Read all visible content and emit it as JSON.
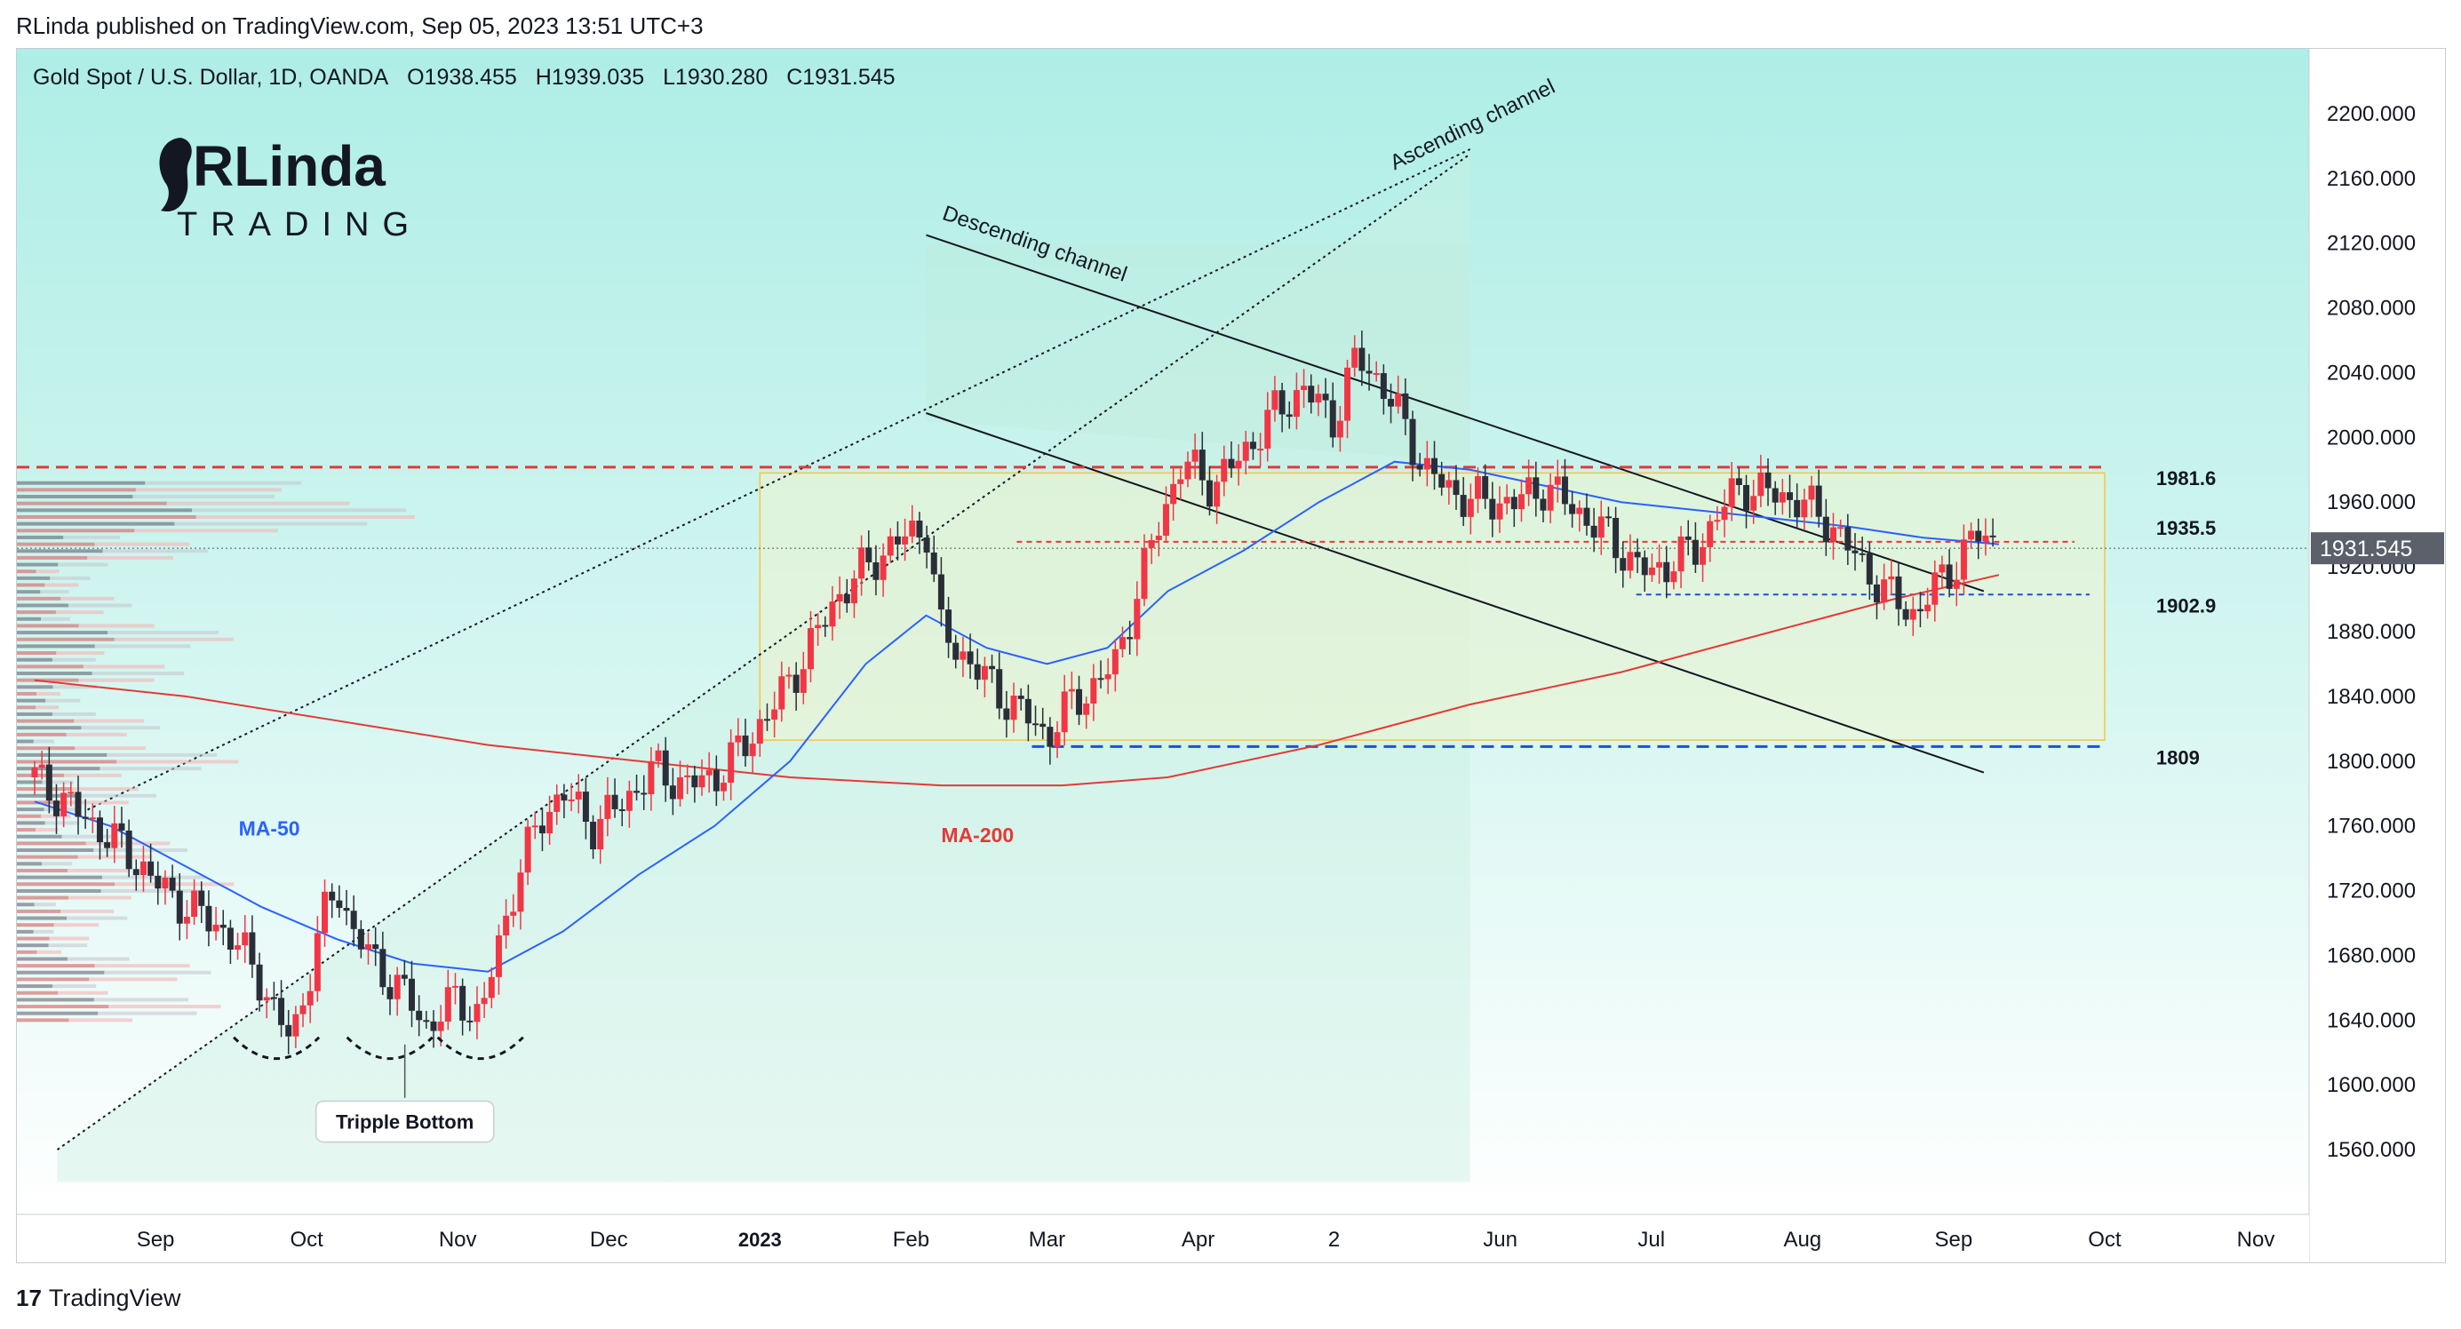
{
  "publisher": "RLinda published on TradingView.com, Sep 05, 2023 13:51 UTC+3",
  "symbol": {
    "name": "Gold Spot / U.S. Dollar, 1D, OANDA",
    "open": "O1938.455",
    "high": "H1939.035",
    "low": "L1930.280",
    "close": "C1931.545"
  },
  "logo": {
    "line1": "RLinda",
    "line2": "TRADING"
  },
  "footer": {
    "brand": "TradingView"
  },
  "colors": {
    "background_top": "#aeeee6",
    "background_bottom": "#ffffff",
    "bull": "#f23645",
    "bear": "#2a2e39",
    "ma50": "#2962ff",
    "ma200": "#e53935",
    "resistance": "#e53935",
    "support": "#1e4fd8",
    "range_box": "#f5c542"
  },
  "chart_data": {
    "type": "candlestick",
    "title": "Gold Spot / U.S. Dollar, 1D, OANDA",
    "ylim": [
      1520,
      2240
    ],
    "y_ticks": [
      "2200.000",
      "2160.000",
      "2120.000",
      "2080.000",
      "2040.000",
      "2000.000",
      "1960.000",
      "1920.000",
      "1880.000",
      "1840.000",
      "1800.000",
      "1760.000",
      "1720.000",
      "1680.000",
      "1640.000",
      "1600.000",
      "1560.000"
    ],
    "x_ticks": [
      {
        "label": "Sep",
        "t": 0.8
      },
      {
        "label": "Oct",
        "t": 1.8
      },
      {
        "label": "Nov",
        "t": 2.8
      },
      {
        "label": "Dec",
        "t": 3.8
      },
      {
        "label": "2023",
        "t": 4.8,
        "bold": true
      },
      {
        "label": "Feb",
        "t": 5.8
      },
      {
        "label": "Mar",
        "t": 6.7
      },
      {
        "label": "Apr",
        "t": 7.7
      },
      {
        "label": "2",
        "t": 8.6
      },
      {
        "label": "Jun",
        "t": 9.7
      },
      {
        "label": "Jul",
        "t": 10.7
      },
      {
        "label": "Aug",
        "t": 11.7
      },
      {
        "label": "Sep",
        "t": 12.7
      },
      {
        "label": "Oct",
        "t": 13.7
      },
      {
        "label": "Nov",
        "t": 14.7
      }
    ],
    "current_price": {
      "label": "1931.545",
      "value": 1931.5
    },
    "levels": [
      {
        "label": "1981.6",
        "value": 1981.6,
        "color": "#e53935"
      },
      {
        "label": "1935.5",
        "value": 1935.5,
        "color": "#e53935"
      },
      {
        "label": "1902.9",
        "value": 1902.9,
        "color": "#1e4fd8"
      },
      {
        "label": "1809",
        "value": 1809,
        "color": "#1e4fd8"
      }
    ],
    "range_box": {
      "t_start": 4.8,
      "t_end": 13.7,
      "price_low": 1813,
      "price_high": 1978
    },
    "annotations": {
      "ascending_channel": "Ascending channel",
      "descending_channel": "Descending channel",
      "triple_bottom": "Tripple Bottom",
      "ma50_label": "MA-50",
      "ma200_label": "MA-200"
    },
    "close_path": [
      [
        0.0,
        1790
      ],
      [
        0.2,
        1775
      ],
      [
        0.4,
        1760
      ],
      [
        0.6,
        1745
      ],
      [
        0.8,
        1725
      ],
      [
        1.0,
        1710
      ],
      [
        1.2,
        1700
      ],
      [
        1.4,
        1680
      ],
      [
        1.5,
        1665
      ],
      [
        1.6,
        1640
      ],
      [
        1.7,
        1630
      ],
      [
        1.8,
        1660
      ],
      [
        1.9,
        1700
      ],
      [
        2.0,
        1725
      ],
      [
        2.1,
        1695
      ],
      [
        2.3,
        1670
      ],
      [
        2.5,
        1650
      ],
      [
        2.6,
        1635
      ],
      [
        2.8,
        1655
      ],
      [
        2.95,
        1640
      ],
      [
        3.05,
        1680
      ],
      [
        3.2,
        1730
      ],
      [
        3.35,
        1765
      ],
      [
        3.5,
        1780
      ],
      [
        3.7,
        1760
      ],
      [
        3.9,
        1775
      ],
      [
        4.1,
        1795
      ],
      [
        4.3,
        1785
      ],
      [
        4.5,
        1790
      ],
      [
        4.7,
        1810
      ],
      [
        4.9,
        1835
      ],
      [
        5.1,
        1865
      ],
      [
        5.3,
        1900
      ],
      [
        5.5,
        1920
      ],
      [
        5.7,
        1935
      ],
      [
        5.9,
        1945
      ],
      [
        6.0,
        1880
      ],
      [
        6.2,
        1860
      ],
      [
        6.4,
        1840
      ],
      [
        6.6,
        1825
      ],
      [
        6.7,
        1815
      ],
      [
        6.85,
        1835
      ],
      [
        7.0,
        1845
      ],
      [
        7.15,
        1860
      ],
      [
        7.3,
        1905
      ],
      [
        7.45,
        1950
      ],
      [
        7.6,
        1985
      ],
      [
        7.8,
        1970
      ],
      [
        8.0,
        1990
      ],
      [
        8.2,
        2015
      ],
      [
        8.4,
        2030
      ],
      [
        8.6,
        2010
      ],
      [
        8.75,
        2050
      ],
      [
        8.9,
        2035
      ],
      [
        9.05,
        2010
      ],
      [
        9.2,
        1980
      ],
      [
        9.4,
        1965
      ],
      [
        9.6,
        1960
      ],
      [
        9.8,
        1960
      ],
      [
        10.0,
        1970
      ],
      [
        10.2,
        1955
      ],
      [
        10.4,
        1940
      ],
      [
        10.55,
        1925
      ],
      [
        10.7,
        1915
      ],
      [
        10.85,
        1925
      ],
      [
        11.0,
        1930
      ],
      [
        11.15,
        1955
      ],
      [
        11.3,
        1970
      ],
      [
        11.5,
        1965
      ],
      [
        11.7,
        1960
      ],
      [
        11.9,
        1945
      ],
      [
        12.1,
        1920
      ],
      [
        12.3,
        1900
      ],
      [
        12.45,
        1890
      ],
      [
        12.55,
        1905
      ],
      [
        12.7,
        1920
      ],
      [
        12.85,
        1940
      ],
      [
        13.0,
        1935
      ]
    ],
    "ma50": [
      [
        0.0,
        1775
      ],
      [
        0.5,
        1760
      ],
      [
        1.0,
        1735
      ],
      [
        1.5,
        1710
      ],
      [
        2.0,
        1690
      ],
      [
        2.5,
        1675
      ],
      [
        3.0,
        1670
      ],
      [
        3.5,
        1695
      ],
      [
        4.0,
        1730
      ],
      [
        4.5,
        1760
      ],
      [
        5.0,
        1800
      ],
      [
        5.5,
        1860
      ],
      [
        5.9,
        1890
      ],
      [
        6.3,
        1870
      ],
      [
        6.7,
        1860
      ],
      [
        7.1,
        1870
      ],
      [
        7.5,
        1905
      ],
      [
        8.0,
        1930
      ],
      [
        8.5,
        1960
      ],
      [
        9.0,
        1985
      ],
      [
        9.5,
        1980
      ],
      [
        10.0,
        1970
      ],
      [
        10.5,
        1960
      ],
      [
        11.0,
        1955
      ],
      [
        11.5,
        1950
      ],
      [
        12.0,
        1945
      ],
      [
        12.5,
        1938
      ],
      [
        13.0,
        1934
      ]
    ],
    "ma200": [
      [
        0.0,
        1850
      ],
      [
        1.0,
        1840
      ],
      [
        2.0,
        1825
      ],
      [
        3.0,
        1810
      ],
      [
        4.0,
        1800
      ],
      [
        5.0,
        1790
      ],
      [
        6.0,
        1785
      ],
      [
        6.8,
        1785
      ],
      [
        7.5,
        1790
      ],
      [
        8.5,
        1810
      ],
      [
        9.5,
        1835
      ],
      [
        10.5,
        1855
      ],
      [
        11.5,
        1880
      ],
      [
        12.3,
        1900
      ],
      [
        13.0,
        1915
      ]
    ]
  }
}
